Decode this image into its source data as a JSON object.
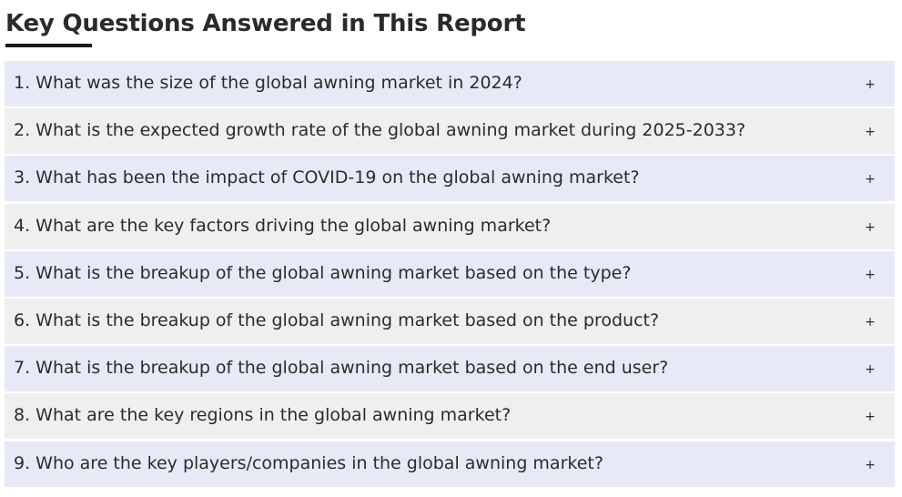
{
  "section": {
    "title": "Key Questions Answered in This Report"
  },
  "faq": {
    "toggle_symbol": "+",
    "items": [
      {
        "question": "1. What was the size of the global awning market in 2024?"
      },
      {
        "question": "2. What is the expected growth rate of the global awning market during 2025-2033?"
      },
      {
        "question": "3. What has been the impact of COVID-19 on the global awning market?"
      },
      {
        "question": "4. What are the key factors driving the global awning market?"
      },
      {
        "question": "5. What is the breakup of the global awning market based on the type?"
      },
      {
        "question": "6. What is the breakup of the global awning market based on the product?"
      },
      {
        "question": "7. What is the breakup of the global awning market based on the end user?"
      },
      {
        "question": "8. What are the key regions in the global awning market?"
      },
      {
        "question": "9. Who are the key players/companies in the global awning market?"
      }
    ]
  },
  "colors": {
    "row_odd": "#e8e9f6",
    "row_even": "#efefef",
    "text": "#2b2b2b",
    "underline": "#1a1a1a"
  }
}
